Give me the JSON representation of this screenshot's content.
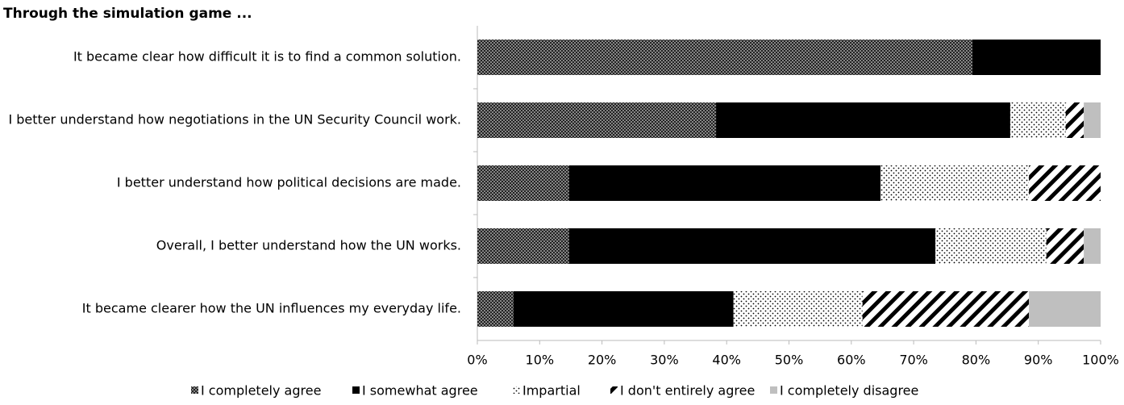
{
  "chart_data": {
    "type": "stacked-bar",
    "orientation": "horizontal",
    "title": "Through the simulation game ...",
    "categories": [
      "It became clear how difficult it is to find a common solution.",
      "I better understand how negotiations in the UN Security Council work.",
      "I better understand how political decisions are made.",
      "Overall, I better understand how the UN works.",
      "It became clearer how the UN influences my everyday life."
    ],
    "series": [
      {
        "name": "I completely agree",
        "values": [
          79.4,
          38.3,
          14.7,
          14.7,
          5.8
        ]
      },
      {
        "name": "I somewhat agree",
        "values": [
          20.6,
          47.2,
          50.0,
          58.8,
          35.3
        ]
      },
      {
        "name": "Impartial",
        "values": [
          0,
          8.9,
          23.8,
          17.8,
          20.7
        ]
      },
      {
        "name": "I don't entirely agree",
        "values": [
          0,
          2.9,
          11.5,
          6.0,
          26.7
        ]
      },
      {
        "name": "I completely disagree",
        "values": [
          0,
          2.7,
          0,
          2.7,
          11.5
        ]
      }
    ],
    "xlim": [
      0,
      100
    ],
    "xticks": [
      {
        "value": 0,
        "label": "0%"
      },
      {
        "value": 10,
        "label": "10%"
      },
      {
        "value": 20,
        "label": "20%"
      },
      {
        "value": 30,
        "label": "30%"
      },
      {
        "value": 40,
        "label": "40%"
      },
      {
        "value": 50,
        "label": "50%"
      },
      {
        "value": 60,
        "label": "60%"
      },
      {
        "value": 70,
        "label": "70%"
      },
      {
        "value": 80,
        "label": "80%"
      },
      {
        "value": 90,
        "label": "90%"
      },
      {
        "value": 100,
        "label": "100%"
      }
    ],
    "legend": "bottom"
  }
}
